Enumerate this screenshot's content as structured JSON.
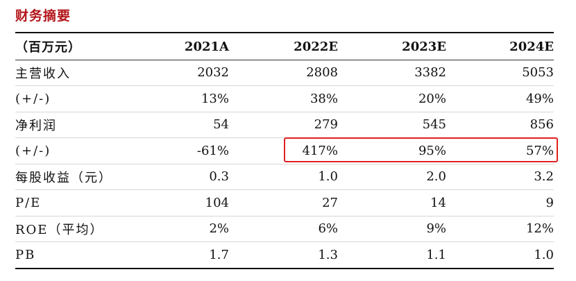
{
  "title": "财务摘要",
  "table": {
    "header": [
      "（百万元）",
      "2021A",
      "2022E",
      "2023E",
      "2024E"
    ],
    "rows": [
      [
        "主营收入",
        "2032",
        "2808",
        "3382",
        "5053"
      ],
      [
        "(+/-)",
        "13%",
        "38%",
        "20%",
        "49%"
      ],
      [
        "净利润",
        "54",
        "279",
        "545",
        "856"
      ],
      [
        "(+/-)",
        "-61%",
        "417%",
        "95%",
        "57%"
      ],
      [
        "每股收益（元）",
        "0.3",
        "1.0",
        "2.0",
        "3.2"
      ],
      [
        "P/E",
        "104",
        "27",
        "14",
        "9"
      ],
      [
        "ROE（平均）",
        "2%",
        "6%",
        "9%",
        "12%"
      ],
      [
        "PB",
        "1.7",
        "1.3",
        "1.1",
        "1.0"
      ]
    ]
  },
  "colors": {
    "title": "#b3161b",
    "highlight_border": "#e02020"
  }
}
